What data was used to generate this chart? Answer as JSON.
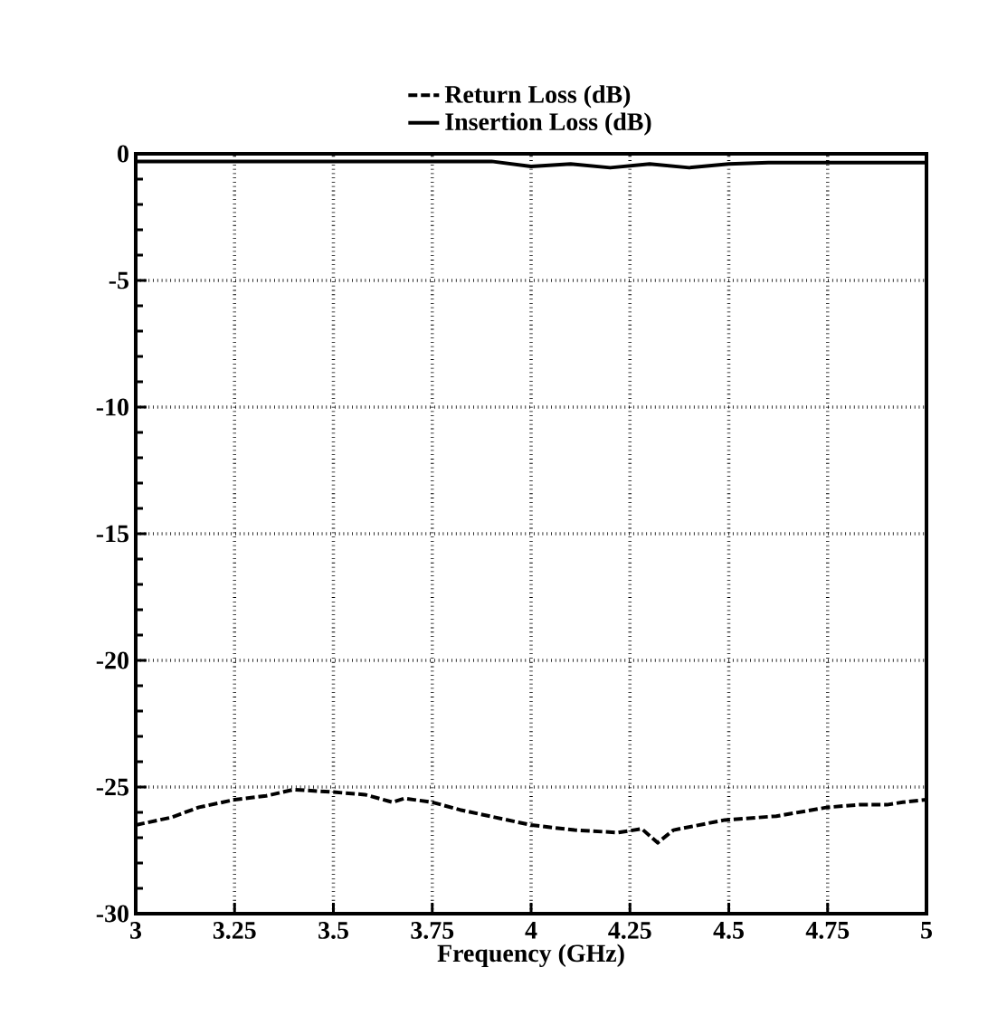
{
  "chart_data": {
    "type": "line",
    "xlabel": "Frequency (GHz)",
    "xlim": [
      3,
      5
    ],
    "xticks": [
      3,
      3.25,
      3.5,
      3.75,
      4,
      4.25,
      4.5,
      4.75,
      5
    ],
    "ylim": [
      -30,
      0
    ],
    "yticks": [
      -30,
      -25,
      -20,
      -15,
      -10,
      -5,
      0
    ],
    "grid": true,
    "legend": "top",
    "series": [
      {
        "name": "Return Loss (dB)",
        "color": "#000000",
        "line_style": "dashed",
        "x": [
          3.0,
          3.09,
          3.16,
          3.25,
          3.33,
          3.4,
          3.5,
          3.58,
          3.65,
          3.68,
          3.75,
          3.82,
          3.91,
          4.0,
          4.11,
          4.22,
          4.28,
          4.32,
          4.36,
          4.49,
          4.62,
          4.75,
          4.83,
          4.9,
          4.94,
          5.0
        ],
        "values": [
          -26.5,
          -26.2,
          -25.8,
          -25.5,
          -25.35,
          -25.1,
          -25.2,
          -25.3,
          -25.6,
          -25.45,
          -25.6,
          -25.9,
          -26.2,
          -26.5,
          -26.7,
          -26.8,
          -26.65,
          -27.2,
          -26.7,
          -26.3,
          -26.15,
          -25.8,
          -25.7,
          -25.7,
          -25.6,
          -25.5
        ]
      },
      {
        "name": "Insertion Loss (dB)",
        "color": "#000000",
        "line_style": "solid",
        "x": [
          3.0,
          3.5,
          3.9,
          4.0,
          4.1,
          4.2,
          4.3,
          4.4,
          4.5,
          4.6,
          5.0
        ],
        "values": [
          -0.3,
          -0.3,
          -0.3,
          -0.5,
          -0.4,
          -0.55,
          -0.4,
          -0.55,
          -0.4,
          -0.35,
          -0.35
        ]
      }
    ]
  }
}
